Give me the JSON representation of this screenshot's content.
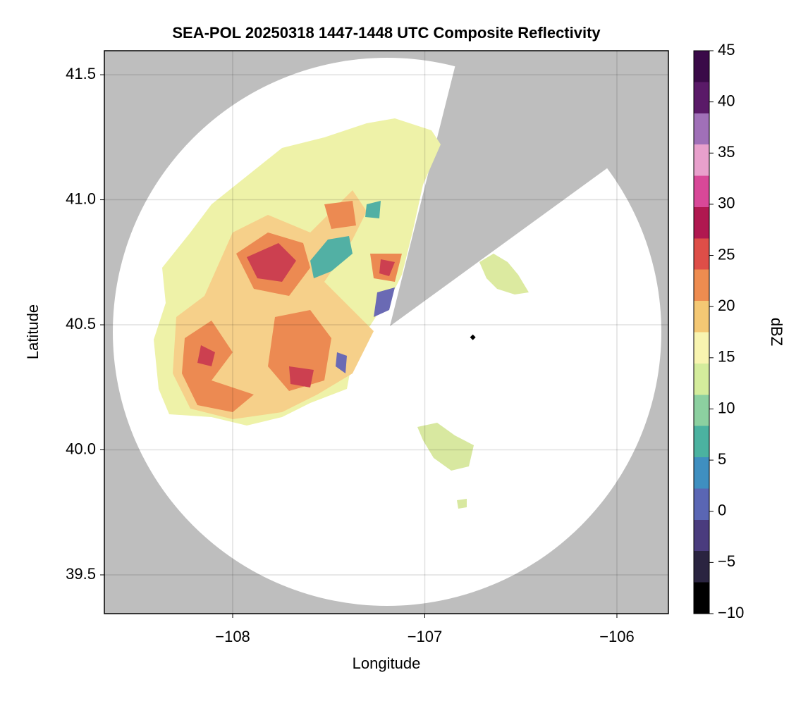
{
  "chart_data": {
    "type": "map",
    "title": "SEA-POL 20250318 1447-1448 UTC Composite Reflectivity",
    "xlabel": "Longitude",
    "ylabel": "Latitude",
    "xlim": [
      -108.668,
      -105.732
    ],
    "ylim": [
      39.345,
      41.596
    ],
    "xticks": [
      {
        "value": -108,
        "label": "−108"
      },
      {
        "value": -107,
        "label": "−107"
      },
      {
        "value": -106,
        "label": "−106"
      }
    ],
    "yticks": [
      39.5,
      {
        "value": 40,
        "label": "40.0"
      },
      40.5,
      {
        "value": 41,
        "label": "41.0"
      },
      41.5
    ],
    "grid": true,
    "marker": {
      "x": -106.75,
      "y": 40.45
    },
    "colorbar": {
      "label": "dBZ",
      "lim": [
        -10,
        45
      ],
      "ticks": [
        {
          "value": -10,
          "label": "−10"
        },
        {
          "value": -5,
          "label": "−5"
        },
        0,
        5,
        10,
        15,
        20,
        25,
        30,
        35,
        40,
        45
      ],
      "colors": [
        "#000000",
        "#2a2440",
        "#4a3c7e",
        "#5a66b4",
        "#3f8fc0",
        "#4bb2a0",
        "#8cd0a0",
        "#d4ec9c",
        "#f8f4b0",
        "#f4c874",
        "#ee8c50",
        "#de4e48",
        "#b01850",
        "#d84898",
        "#e8a0cc",
        "#a070b8",
        "#5a1a68",
        "#3a0a48"
      ]
    }
  }
}
